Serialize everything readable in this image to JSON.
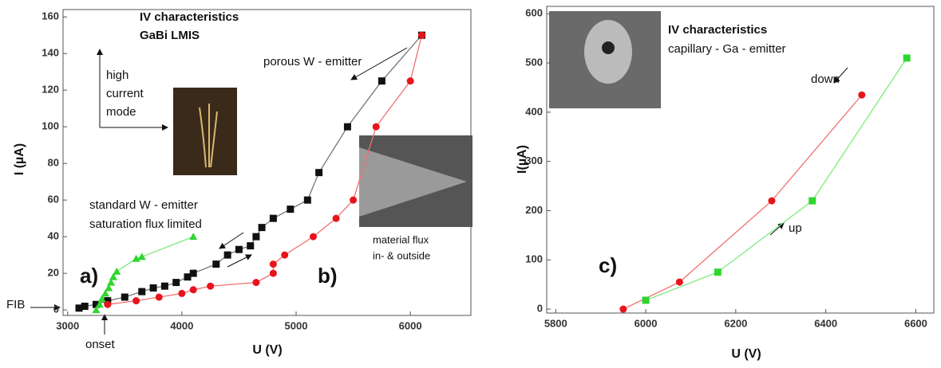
{
  "chart_data": [
    {
      "type": "scatter-line",
      "xlabel": "U (V)",
      "ylabel": "I (µA)",
      "xlim": [
        2960,
        6530
      ],
      "ylim": [
        -3,
        164
      ],
      "xticks": [
        3000,
        4000,
        5000,
        6000
      ],
      "yticks": [
        0,
        20,
        40,
        60,
        80,
        100,
        120,
        140,
        160
      ],
      "series": [
        {
          "color": "#111111",
          "line": "#777777",
          "marker": "square",
          "x": [
            3100,
            3150,
            3250,
            3350,
            3500,
            3650,
            3750,
            3850,
            3950,
            4050,
            4100,
            4300,
            4400,
            4500,
            4600,
            4650,
            4700,
            4800,
            4950,
            5100,
            5200,
            5450,
            5750,
            6100
          ],
          "values": [
            1,
            2,
            3,
            5,
            7,
            10,
            12,
            13,
            15,
            18,
            20,
            25,
            30,
            33,
            35,
            40,
            45,
            50,
            55,
            60,
            75,
            100,
            125,
            150
          ]
        },
        {
          "color": "#e8141c",
          "line": "#f07070",
          "marker": "circle",
          "x": [
            3350,
            3600,
            3800,
            4000,
            4100,
            4250,
            4650,
            4800,
            4800,
            4900,
            5150,
            5350,
            5500,
            5700,
            6000,
            6100
          ],
          "values": [
            3,
            5,
            7,
            9,
            11,
            13,
            15,
            20,
            25,
            30,
            40,
            50,
            60,
            100,
            125,
            150
          ]
        },
        {
          "color": "#2fd62f",
          "line": "#7de87d",
          "marker": "triangle",
          "x": [
            3250,
            3280,
            3300,
            3330,
            3360,
            3380,
            3400,
            3430,
            3600,
            3650,
            4100
          ],
          "values": [
            0,
            3,
            6,
            9,
            12,
            15,
            18,
            21,
            28,
            29,
            40
          ]
        }
      ],
      "annotations": [
        "IV characteristics",
        "GaBi LMIS",
        "high",
        "current",
        "mode",
        "porous W - emitter",
        "standard W - emitter",
        "saturation flux limited",
        "a)",
        "b)",
        "material flux",
        "in- & outside",
        "FIB",
        "onset"
      ]
    },
    {
      "type": "scatter-line",
      "xlabel": "U (V)",
      "ylabel": "I(µA)",
      "xlim": [
        5780,
        6640
      ],
      "ylim": [
        -8,
        615
      ],
      "xticks": [
        5800,
        6000,
        6200,
        6400,
        6600
      ],
      "yticks": [
        0,
        100,
        200,
        300,
        400,
        500,
        600
      ],
      "series": [
        {
          "color": "#e8141c",
          "line": "#f07070",
          "marker": "circle",
          "x": [
            5950,
            6075,
            6280,
            6480
          ],
          "values": [
            0,
            55,
            220,
            435
          ]
        },
        {
          "color": "#2fd62f",
          "line": "#7de87d",
          "marker": "square",
          "x": [
            6000,
            6160,
            6370,
            6580
          ],
          "values": [
            18,
            75,
            220,
            510
          ]
        }
      ],
      "annotations": [
        "IV characteristics",
        "capillary - Ga - emitter",
        "down",
        "up",
        "c)"
      ]
    }
  ]
}
